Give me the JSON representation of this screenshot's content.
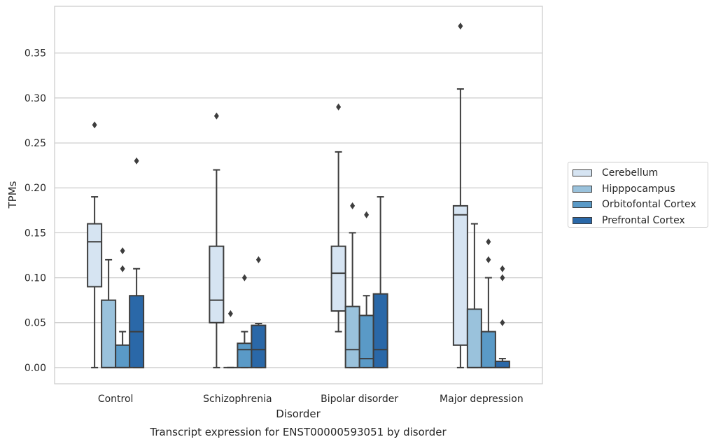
{
  "chart_data": {
    "type": "box",
    "title": "Transcript expression for ENST00000593051 by disorder",
    "xlabel": "Disorder",
    "ylabel": "TPMs",
    "ylim": [
      -0.018,
      0.402
    ],
    "yticks": [
      "0.00",
      "0.05",
      "0.10",
      "0.15",
      "0.20",
      "0.25",
      "0.30",
      "0.35"
    ],
    "grid": "horizontal",
    "legend_position": "right",
    "categories": [
      "Control",
      "Schizophrenia",
      "Bipolar disorder",
      "Major depression"
    ],
    "series": [
      {
        "name": "Cerebellum",
        "color": "#d6e4f2",
        "boxes": [
          {
            "whislo": 0.0,
            "q1": 0.09,
            "med": 0.14,
            "q3": 0.16,
            "whishi": 0.19,
            "fliers": [
              0.27
            ]
          },
          {
            "whislo": 0.0,
            "q1": 0.05,
            "med": 0.075,
            "q3": 0.135,
            "whishi": 0.22,
            "fliers": [
              0.28
            ]
          },
          {
            "whislo": 0.04,
            "q1": 0.063,
            "med": 0.105,
            "q3": 0.135,
            "whishi": 0.24,
            "fliers": [
              0.29
            ]
          },
          {
            "whislo": 0.0,
            "q1": 0.025,
            "med": 0.17,
            "q3": 0.18,
            "whishi": 0.31,
            "fliers": [
              0.38
            ]
          }
        ]
      },
      {
        "name": "Hipppocampus",
        "color": "#9ac2dc",
        "boxes": [
          {
            "whislo": 0.0,
            "q1": 0.0,
            "med": 0.0,
            "q3": 0.075,
            "whishi": 0.12,
            "fliers": []
          },
          {
            "whislo": 0.0,
            "q1": 0.0,
            "med": 0.0,
            "q3": 0.0,
            "whishi": 0.0,
            "fliers": [
              0.06
            ]
          },
          {
            "whislo": 0.0,
            "q1": 0.0,
            "med": 0.02,
            "q3": 0.068,
            "whishi": 0.15,
            "fliers": [
              0.18
            ]
          },
          {
            "whislo": 0.0,
            "q1": 0.0,
            "med": 0.0,
            "q3": 0.065,
            "whishi": 0.16,
            "fliers": []
          }
        ]
      },
      {
        "name": "Orbitofontal Cortex",
        "color": "#5a9ac7",
        "boxes": [
          {
            "whislo": 0.0,
            "q1": 0.0,
            "med": 0.0,
            "q3": 0.025,
            "whishi": 0.04,
            "fliers": [
              0.11,
              0.13
            ]
          },
          {
            "whislo": 0.0,
            "q1": 0.0,
            "med": 0.02,
            "q3": 0.027,
            "whishi": 0.04,
            "fliers": [
              0.1
            ]
          },
          {
            "whislo": 0.0,
            "q1": 0.0,
            "med": 0.01,
            "q3": 0.058,
            "whishi": 0.08,
            "fliers": [
              0.17
            ]
          },
          {
            "whislo": 0.0,
            "q1": 0.0,
            "med": 0.0,
            "q3": 0.04,
            "whishi": 0.1,
            "fliers": [
              0.12,
              0.14
            ]
          }
        ]
      },
      {
        "name": "Prefrontal Cortex",
        "color": "#2a68a8",
        "boxes": [
          {
            "whislo": 0.0,
            "q1": 0.0,
            "med": 0.04,
            "q3": 0.08,
            "whishi": 0.11,
            "fliers": [
              0.23
            ]
          },
          {
            "whislo": 0.0,
            "q1": 0.0,
            "med": 0.02,
            "q3": 0.047,
            "whishi": 0.049,
            "fliers": [
              0.12
            ]
          },
          {
            "whislo": 0.0,
            "q1": 0.0,
            "med": 0.02,
            "q3": 0.082,
            "whishi": 0.19,
            "fliers": []
          },
          {
            "whislo": 0.0,
            "q1": 0.0,
            "med": 0.0,
            "q3": 0.007,
            "whishi": 0.01,
            "fliers": [
              0.05,
              0.1,
              0.11
            ]
          }
        ]
      }
    ]
  }
}
